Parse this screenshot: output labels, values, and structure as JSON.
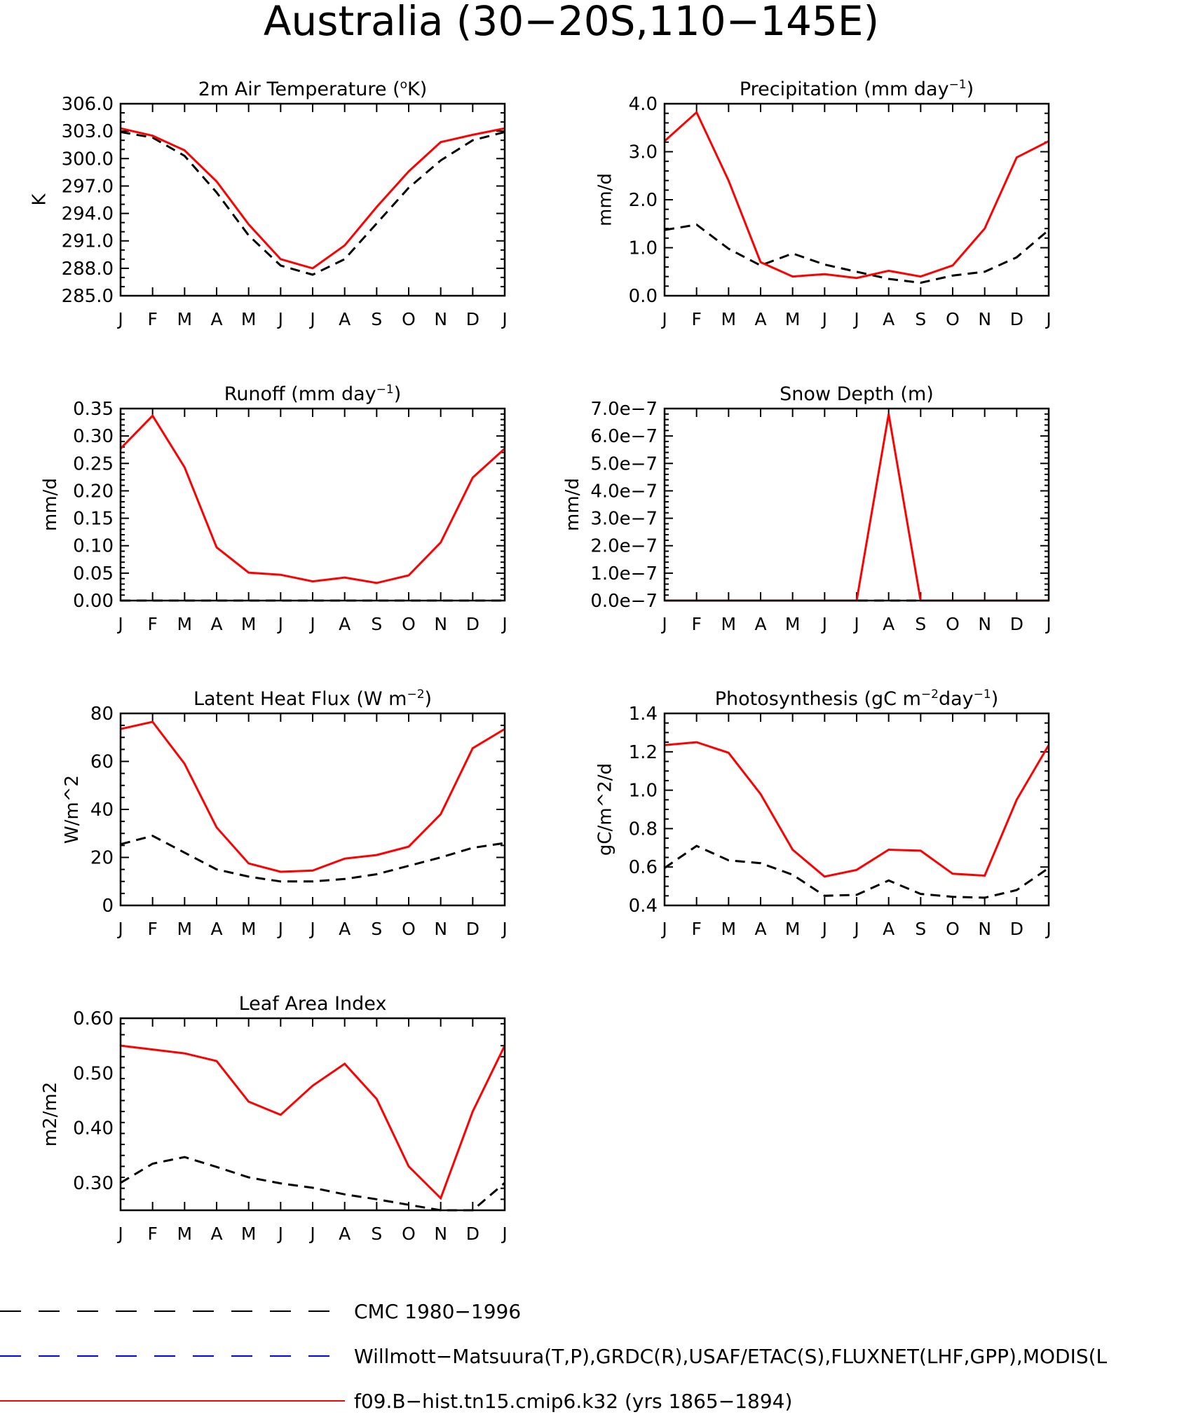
{
  "figure_title": "Australia (30−20S,110−145E)",
  "months": [
    "J",
    "F",
    "M",
    "A",
    "M",
    "J",
    "J",
    "A",
    "S",
    "O",
    "N",
    "D",
    "J"
  ],
  "colors": {
    "observations": "#000000",
    "model": "#ff0000",
    "obs_secondary": "#0000ff"
  },
  "legend": [
    {
      "label": "CMC 1980−1996",
      "color": "#000000",
      "style": "dashed"
    },
    {
      "label": "Willmott−Matsuura(T,P),GRDC(R),USAF/ETAC(S),FLUXNET(LHF,GPP),MODIS(L",
      "color": "#0000ff",
      "style": "dashed"
    },
    {
      "label": "f09.B−hist.tn15.cmip6.k32 (yrs 1865−1894)",
      "color": "#ff0000",
      "style": "solid"
    }
  ],
  "chart_data": [
    {
      "type": "line",
      "title": "2m Air Temperature (°K)",
      "title_parts": [
        {
          "t": "2m Air Temperature ("
        },
        {
          "t": "o",
          "sup": true
        },
        {
          "t": "K)"
        }
      ],
      "ylabel": "K",
      "ylim": [
        285,
        306
      ],
      "yticks": [
        285,
        288,
        291,
        294,
        297,
        300,
        303,
        306
      ],
      "ytick_labels": [
        "285.0",
        "288.0",
        "291.0",
        "294.0",
        "297.0",
        "300.0",
        "303.0",
        "306.0"
      ],
      "minor_per_major": 3,
      "x": [
        "J",
        "F",
        "M",
        "A",
        "M",
        "J",
        "J",
        "A",
        "S",
        "O",
        "N",
        "D",
        "J"
      ],
      "series": [
        {
          "role": "model",
          "values": [
            303.3,
            302.5,
            300.9,
            297.5,
            292.8,
            289.0,
            288.0,
            290.5,
            294.7,
            298.6,
            301.8,
            302.6,
            303.3
          ]
        },
        {
          "role": "observations",
          "values": [
            302.9,
            302.3,
            300.3,
            296.3,
            291.6,
            288.3,
            287.3,
            289.0,
            292.9,
            296.8,
            299.8,
            302.0,
            302.9
          ]
        }
      ]
    },
    {
      "type": "line",
      "title": "Precipitation (mm day−1)",
      "title_parts": [
        {
          "t": "Precipitation (mm day"
        },
        {
          "t": "−1",
          "sup": true
        },
        {
          "t": ")"
        }
      ],
      "ylabel": "mm/d",
      "ylim": [
        0,
        4
      ],
      "yticks": [
        0,
        1,
        2,
        3,
        4
      ],
      "ytick_labels": [
        "0.0",
        "1.0",
        "2.0",
        "3.0",
        "4.0"
      ],
      "minor_per_major": 5,
      "x": [
        "J",
        "F",
        "M",
        "A",
        "M",
        "J",
        "J",
        "A",
        "S",
        "O",
        "N",
        "D",
        "J"
      ],
      "series": [
        {
          "role": "model",
          "values": [
            3.22,
            3.82,
            2.4,
            0.7,
            0.4,
            0.45,
            0.37,
            0.52,
            0.4,
            0.63,
            1.4,
            2.88,
            3.22
          ]
        },
        {
          "role": "observations",
          "values": [
            1.37,
            1.48,
            0.98,
            0.63,
            0.88,
            0.65,
            0.5,
            0.35,
            0.27,
            0.42,
            0.5,
            0.8,
            1.37
          ]
        }
      ]
    },
    {
      "type": "line",
      "title": "Runoff (mm day−1)",
      "title_parts": [
        {
          "t": "Runoff (mm day"
        },
        {
          "t": "−1",
          "sup": true
        },
        {
          "t": ")"
        }
      ],
      "ylabel": "mm/d",
      "ylim": [
        0,
        0.35
      ],
      "yticks": [
        0,
        0.05,
        0.1,
        0.15,
        0.2,
        0.25,
        0.3,
        0.35
      ],
      "ytick_labels": [
        "0.00",
        "0.05",
        "0.10",
        "0.15",
        "0.20",
        "0.25",
        "0.30",
        "0.35"
      ],
      "minor_per_major": 5,
      "x": [
        "J",
        "F",
        "M",
        "A",
        "M",
        "J",
        "J",
        "A",
        "S",
        "O",
        "N",
        "D",
        "J"
      ],
      "series": [
        {
          "role": "model",
          "values": [
            0.277,
            0.337,
            0.243,
            0.097,
            0.051,
            0.047,
            0.035,
            0.042,
            0.032,
            0.046,
            0.106,
            0.224,
            0.277
          ]
        },
        {
          "role": "observations",
          "values": [
            0,
            0,
            0,
            0,
            0,
            0,
            0,
            0,
            0,
            0,
            0,
            0,
            0
          ]
        }
      ]
    },
    {
      "type": "line",
      "title": "Snow Depth (m)",
      "title_parts": [
        {
          "t": "Snow Depth (m)"
        }
      ],
      "ylabel": "mm/d",
      "ylim": [
        0,
        7e-07
      ],
      "yticks": [
        0,
        1e-07,
        2e-07,
        3e-07,
        4e-07,
        5e-07,
        6e-07,
        7e-07
      ],
      "ytick_labels": [
        "0.0e−7",
        "1.0e−7",
        "2.0e−7",
        "3.0e−7",
        "4.0e−7",
        "5.0e−7",
        "6.0e−7",
        "7.0e−7"
      ],
      "minor_per_major": 5,
      "x": [
        "J",
        "F",
        "M",
        "A",
        "M",
        "J",
        "J",
        "A",
        "S",
        "O",
        "N",
        "D",
        "J"
      ],
      "series": [
        {
          "role": "model",
          "values": [
            0,
            0,
            0,
            0,
            0,
            0,
            0,
            6.8e-07,
            0,
            0,
            0,
            0,
            0
          ]
        },
        {
          "role": "observations",
          "values": [
            0,
            0,
            0,
            0,
            0,
            0,
            0,
            0,
            0,
            0,
            0,
            0,
            0
          ]
        }
      ]
    },
    {
      "type": "line",
      "title": "Latent Heat Flux (W m−2)",
      "title_parts": [
        {
          "t": "Latent Heat Flux (W m"
        },
        {
          "t": "−2",
          "sup": true
        },
        {
          "t": ")"
        }
      ],
      "ylabel": "W/m^2",
      "ylim": [
        0,
        80
      ],
      "yticks": [
        0,
        20,
        40,
        60,
        80
      ],
      "ytick_labels": [
        "0",
        "20",
        "40",
        "60",
        "80"
      ],
      "minor_per_major": 4,
      "x": [
        "J",
        "F",
        "M",
        "A",
        "M",
        "J",
        "J",
        "A",
        "S",
        "O",
        "N",
        "D",
        "J"
      ],
      "series": [
        {
          "role": "model",
          "values": [
            73.5,
            76.5,
            59,
            32.5,
            17.5,
            14,
            14.5,
            19.5,
            21,
            24.5,
            38,
            65.5,
            73.5
          ]
        },
        {
          "role": "observations",
          "values": [
            25.5,
            29,
            22,
            15,
            12,
            10,
            10,
            11,
            13,
            16.5,
            20,
            24,
            26
          ]
        }
      ]
    },
    {
      "type": "line",
      "title": "Photosynthesis (gC m−2day−1)",
      "title_parts": [
        {
          "t": "Photosynthesis (gC m"
        },
        {
          "t": "−2",
          "sup": true
        },
        {
          "t": "day"
        },
        {
          "t": "−1",
          "sup": true
        },
        {
          "t": ")"
        }
      ],
      "ylabel": "gC/m^2/d",
      "ylim": [
        0.4,
        1.4
      ],
      "yticks": [
        0.4,
        0.6,
        0.8,
        1.0,
        1.2,
        1.4
      ],
      "ytick_labels": [
        "0.4",
        "0.6",
        "0.8",
        "1.0",
        "1.2",
        "1.4"
      ],
      "minor_per_major": 4,
      "x": [
        "J",
        "F",
        "M",
        "A",
        "M",
        "J",
        "J",
        "A",
        "S",
        "O",
        "N",
        "D",
        "J"
      ],
      "series": [
        {
          "role": "model",
          "values": [
            1.235,
            1.25,
            1.195,
            0.98,
            0.69,
            0.55,
            0.585,
            0.69,
            0.685,
            0.565,
            0.555,
            0.95,
            1.235
          ]
        },
        {
          "role": "observations",
          "values": [
            0.595,
            0.71,
            0.635,
            0.62,
            0.56,
            0.45,
            0.455,
            0.53,
            0.46,
            0.445,
            0.44,
            0.48,
            0.595
          ]
        }
      ]
    },
    {
      "type": "line",
      "title": "Leaf Area Index",
      "title_parts": [
        {
          "t": "Leaf Area Index"
        }
      ],
      "ylabel": "m2/m2",
      "ylim": [
        0.25,
        0.6
      ],
      "yticks": [
        0.3,
        0.4,
        0.5,
        0.6
      ],
      "ytick_labels": [
        "0.30",
        "0.40",
        "0.50",
        "0.60"
      ],
      "minor_per_major": 5,
      "x": [
        "J",
        "F",
        "M",
        "A",
        "M",
        "J",
        "J",
        "A",
        "S",
        "O",
        "N",
        "D",
        "J"
      ],
      "series": [
        {
          "role": "model",
          "values": [
            0.55,
            0.543,
            0.536,
            0.522,
            0.448,
            0.424,
            0.477,
            0.517,
            0.453,
            0.33,
            0.272,
            0.43,
            0.55
          ]
        },
        {
          "role": "observations",
          "values": [
            0.3,
            0.335,
            0.347,
            0.329,
            0.31,
            0.299,
            0.291,
            0.279,
            0.27,
            0.26,
            0.25,
            0.25,
            0.3
          ]
        }
      ]
    }
  ]
}
